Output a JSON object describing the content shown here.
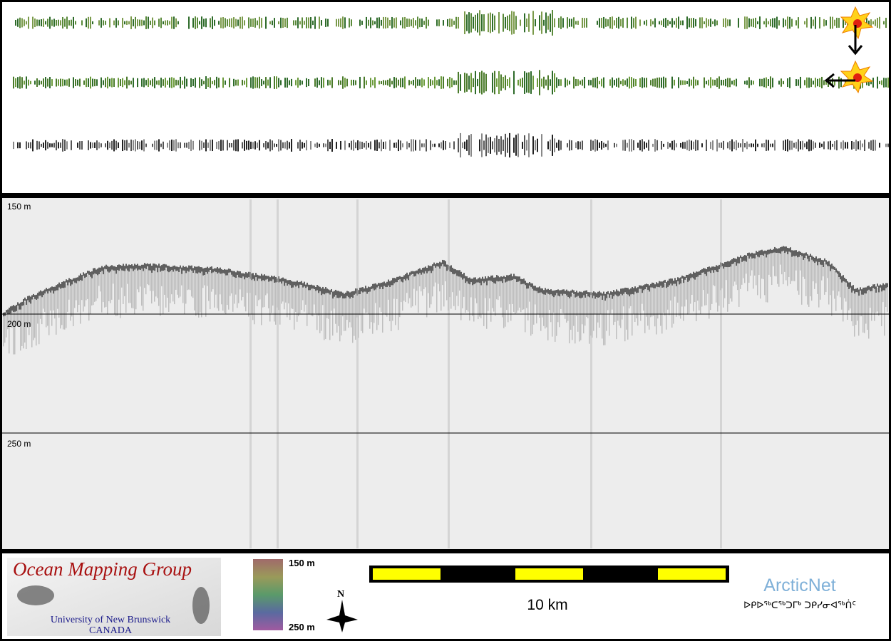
{
  "profile": {
    "depth_labels": [
      "150 m",
      "200 m",
      "250 m"
    ]
  },
  "footer": {
    "logo": {
      "title": "Ocean Mapping Group",
      "university": "University of New Brunswick",
      "country": "CANADA"
    },
    "colorbar": {
      "top_label": "150 m",
      "bottom_label": "250 m"
    },
    "north": "N",
    "scale": "10 km",
    "partner": {
      "name": "ArcticNet",
      "inuktitut": "ᐅᑭᐅᖅᑕᖅᑐᒥᒃ ᑐᑭᓯᓂᐊᖅᑏᑦ"
    }
  }
}
